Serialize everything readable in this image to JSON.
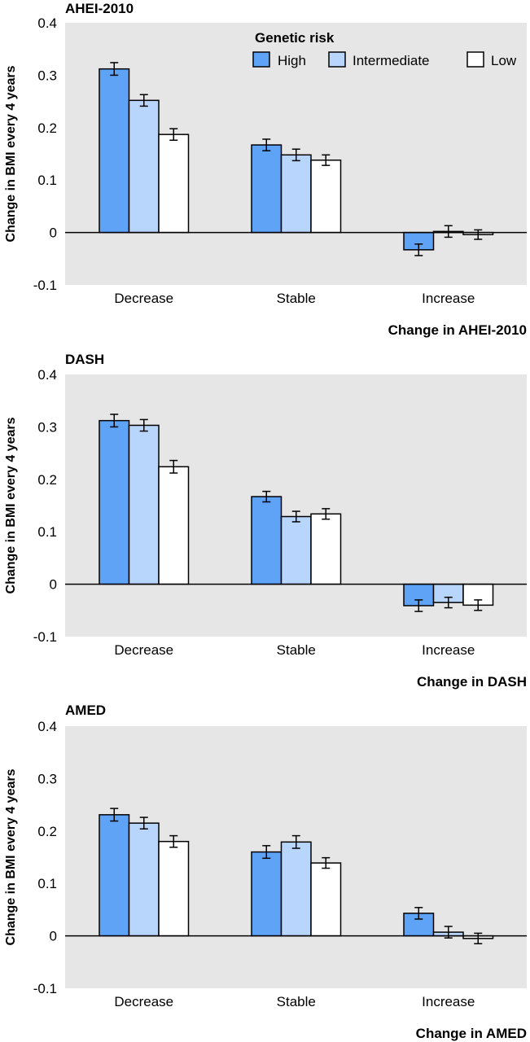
{
  "legend": {
    "title": "Genetic risk",
    "entries": [
      {
        "name": "High",
        "color": "#5fa3f7"
      },
      {
        "name": "Intermediate",
        "color": "#b8d5fb"
      },
      {
        "name": "Low",
        "color": "#ffffff"
      }
    ]
  },
  "colors": {
    "panel_bg": "#e6e6e6",
    "bar_stroke": "#000000"
  },
  "chart_data": [
    {
      "type": "bar",
      "title": "AHEI-2010",
      "xlabel": "Change in AHEI-2010",
      "ylabel": "Change in BMI every 4 years",
      "ylim": [
        -0.1,
        0.4
      ],
      "yticks": [
        "-0.1",
        "0",
        "0.1",
        "0.2",
        "0.3",
        "0.4"
      ],
      "categories": [
        "Decrease",
        "Stable",
        "Increase"
      ],
      "series": [
        {
          "name": "High",
          "values": [
            0.312,
            0.167,
            -0.033
          ],
          "errors": [
            0.012,
            0.011,
            0.011
          ]
        },
        {
          "name": "Intermediate",
          "values": [
            0.252,
            0.148,
            0.002
          ],
          "errors": [
            0.011,
            0.011,
            0.011
          ]
        },
        {
          "name": "Low",
          "values": [
            0.187,
            0.138,
            -0.004
          ],
          "errors": [
            0.011,
            0.01,
            0.009
          ]
        }
      ]
    },
    {
      "type": "bar",
      "title": "DASH",
      "xlabel": "Change in DASH",
      "ylabel": "Change in BMI every 4 years",
      "ylim": [
        -0.1,
        0.4
      ],
      "yticks": [
        "-0.1",
        "0",
        "0.1",
        "0.2",
        "0.3",
        "0.4"
      ],
      "categories": [
        "Decrease",
        "Stable",
        "Increase"
      ],
      "series": [
        {
          "name": "High",
          "values": [
            0.312,
            0.167,
            -0.041
          ],
          "errors": [
            0.012,
            0.01,
            0.011
          ]
        },
        {
          "name": "Intermediate",
          "values": [
            0.303,
            0.129,
            -0.035
          ],
          "errors": [
            0.011,
            0.01,
            0.01
          ]
        },
        {
          "name": "Low",
          "values": [
            0.224,
            0.134,
            -0.04
          ],
          "errors": [
            0.012,
            0.01,
            0.01
          ]
        }
      ]
    },
    {
      "type": "bar",
      "title": "AMED",
      "xlabel": "Change in AMED",
      "ylabel": "Change in BMI every 4 years",
      "ylim": [
        -0.1,
        0.4
      ],
      "yticks": [
        "-0.1",
        "0",
        "0.1",
        "0.2",
        "0.3",
        "0.4"
      ],
      "categories": [
        "Decrease",
        "Stable",
        "Increase"
      ],
      "series": [
        {
          "name": "High",
          "values": [
            0.231,
            0.16,
            0.043
          ],
          "errors": [
            0.012,
            0.012,
            0.011
          ]
        },
        {
          "name": "Intermediate",
          "values": [
            0.215,
            0.179,
            0.007
          ],
          "errors": [
            0.011,
            0.012,
            0.011
          ]
        },
        {
          "name": "Low",
          "values": [
            0.18,
            0.139,
            -0.005
          ],
          "errors": [
            0.011,
            0.01,
            0.01
          ]
        }
      ]
    }
  ]
}
